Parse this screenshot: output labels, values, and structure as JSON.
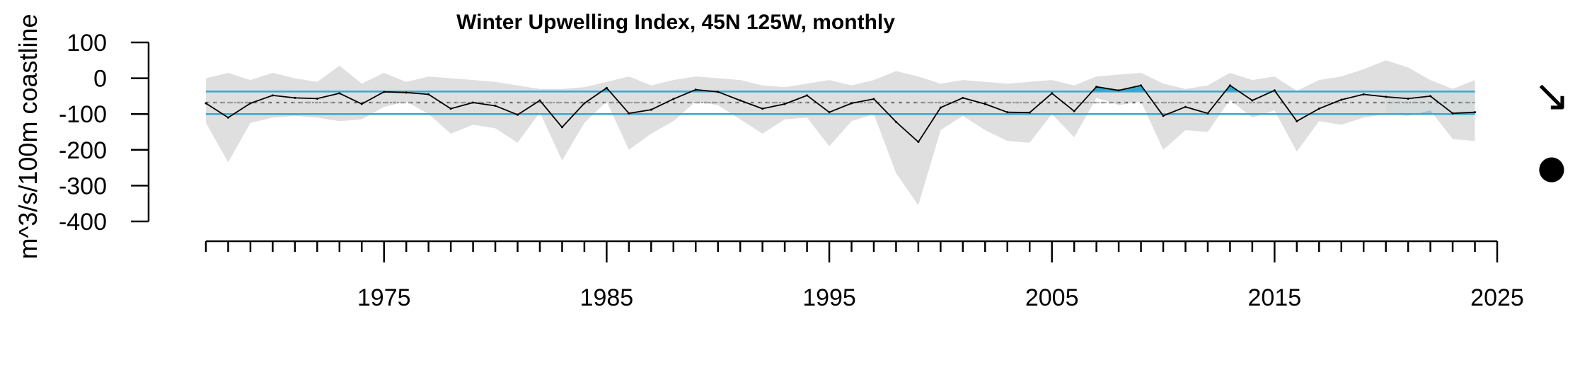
{
  "chart_data": {
    "type": "line",
    "title": "Winter Upwelling Index, 45N 125W, monthly",
    "xlabel": "",
    "ylabel": "m^3/s/100m coastline",
    "xlim": [
      1967,
      2025
    ],
    "ylim": [
      -400,
      100
    ],
    "yticks": [
      100,
      0,
      -100,
      -200,
      -300,
      -400
    ],
    "xtick_labels": [
      1975,
      1985,
      1995,
      2005,
      2015,
      2025
    ],
    "x": [
      1967,
      1968,
      1969,
      1970,
      1971,
      1972,
      1973,
      1974,
      1975,
      1976,
      1977,
      1978,
      1979,
      1980,
      1981,
      1982,
      1983,
      1984,
      1985,
      1986,
      1987,
      1988,
      1989,
      1990,
      1991,
      1992,
      1993,
      1994,
      1995,
      1996,
      1997,
      1998,
      1999,
      2000,
      2001,
      2002,
      2003,
      2004,
      2005,
      2006,
      2007,
      2008,
      2009,
      2010,
      2011,
      2012,
      2013,
      2014,
      2015,
      2016,
      2017,
      2018,
      2019,
      2020,
      2021,
      2022,
      2023,
      2024
    ],
    "series": [
      {
        "values": [
          -70,
          -110,
          -70,
          -48,
          -55,
          -57,
          -42,
          -72,
          -38,
          -40,
          -45,
          -85,
          -68,
          -77,
          -102,
          -62,
          -137,
          -70,
          -27,
          -98,
          -88,
          -58,
          -32,
          -38,
          -62,
          -85,
          -72,
          -48,
          -95,
          -70,
          -58,
          -122,
          -178,
          -82,
          -55,
          -72,
          -95,
          -96,
          -42,
          -92,
          -24,
          -34,
          -20,
          -105,
          -80,
          -98,
          -20,
          -62,
          -34,
          -120,
          -85,
          -60,
          -45,
          -52,
          -57,
          -50,
          -98,
          -95
        ],
        "upper": [
          0,
          15,
          -5,
          15,
          0,
          -10,
          35,
          -15,
          15,
          -10,
          5,
          0,
          -5,
          -10,
          -20,
          -30,
          -30,
          -25,
          -10,
          5,
          -20,
          -5,
          5,
          0,
          -5,
          -20,
          -25,
          -15,
          -5,
          -20,
          -5,
          20,
          5,
          -15,
          -5,
          -10,
          -15,
          -10,
          -5,
          -20,
          5,
          10,
          15,
          -15,
          -30,
          -20,
          15,
          -5,
          5,
          -35,
          -5,
          5,
          25,
          50,
          30,
          -5,
          -30,
          -5
        ],
        "lower": [
          -125,
          -235,
          -125,
          -110,
          -105,
          -110,
          -120,
          -115,
          -80,
          -65,
          -100,
          -155,
          -130,
          -140,
          -180,
          -95,
          -230,
          -125,
          -65,
          -200,
          -155,
          -120,
          -65,
          -75,
          -115,
          -155,
          -115,
          -110,
          -190,
          -120,
          -100,
          -265,
          -355,
          -145,
          -105,
          -145,
          -175,
          -180,
          -100,
          -165,
          -55,
          -75,
          -65,
          -200,
          -145,
          -150,
          -60,
          -110,
          -90,
          -205,
          -120,
          -130,
          -110,
          -100,
          -105,
          -90,
          -170,
          -175
        ]
      }
    ],
    "mean": -68,
    "sd_upper": -37,
    "sd_lower": -100,
    "recent_window": [
      2020,
      2024
    ],
    "trend_symbol": "↘",
    "status_symbol": "●",
    "colors": {
      "line": "#000000",
      "ribbon": "#dcdcdc",
      "sd_line": "#3ba7cf",
      "highlight": "#7fb8cc",
      "above": "#3ba7cf",
      "mean_line": "#a0a0a0"
    }
  }
}
